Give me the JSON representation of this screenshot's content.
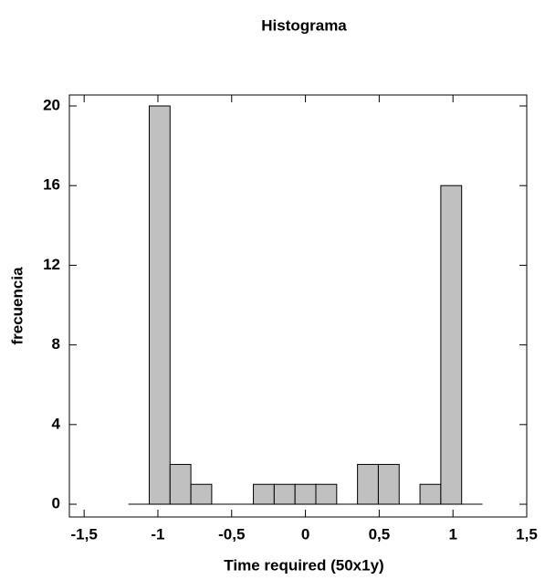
{
  "chart_data": {
    "type": "histogram",
    "title": "Histograma",
    "x_label": "Time required (50x1y)",
    "y_label": "frecuencia",
    "bins": [
      -1.2,
      -1.0588,
      -0.9176,
      -0.7765,
      -0.6353,
      -0.4941,
      -0.3529,
      -0.2118,
      -0.0706,
      0.0706,
      0.2118,
      0.3529,
      0.4941,
      0.6353,
      0.7765,
      0.9176,
      1.0588,
      1.2
    ],
    "values": [
      0,
      20,
      2,
      1,
      0,
      0,
      1,
      1,
      1,
      1,
      0,
      2,
      2,
      0,
      1,
      16,
      0
    ],
    "color": "#c0c0c0",
    "xlim": [
      -1.6,
      1.5
    ],
    "xticks": [
      {
        "value": -1.5,
        "label": "-1,5"
      },
      -1,
      {
        "value": -0.5,
        "label": "-0,5"
      },
      0,
      {
        "value": 0.5,
        "label": "0,5"
      },
      1,
      {
        "value": 1.5,
        "label": "1,5"
      }
    ],
    "ylim": [
      -0.64,
      20.55
    ],
    "yticks": [
      0,
      4,
      8,
      12,
      16,
      20
    ]
  }
}
